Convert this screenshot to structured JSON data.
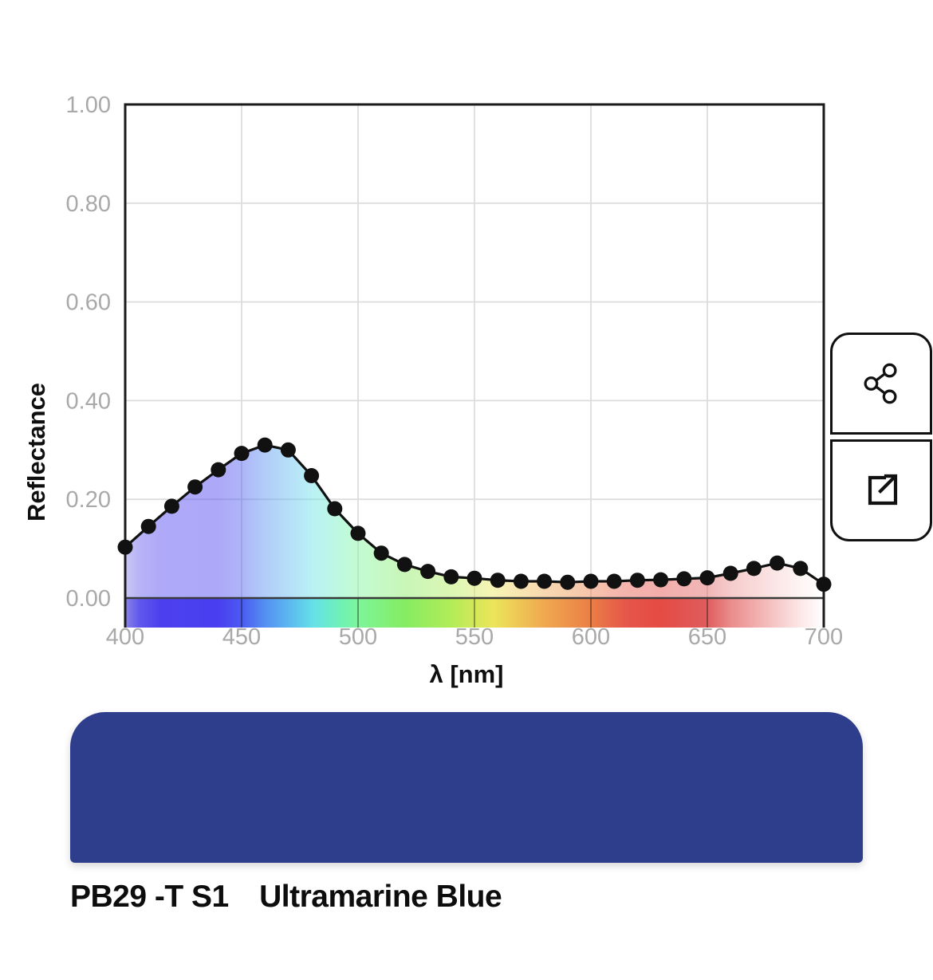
{
  "chart": {
    "y_axis_title": "Reflectance",
    "x_axis_title": "λ [nm]"
  },
  "chart_data": {
    "type": "line",
    "title": "",
    "xlabel": "λ [nm]",
    "ylabel": "Reflectance",
    "xlim": [
      400,
      700
    ],
    "ylim": [
      0,
      1
    ],
    "grid": true,
    "legend": "none",
    "line_color": "#111111",
    "marker": "filled-circle",
    "marker_radius": 9.5,
    "fill_opacity": 0.45,
    "x": [
      400,
      410,
      420,
      430,
      440,
      450,
      460,
      470,
      480,
      490,
      500,
      510,
      520,
      530,
      540,
      550,
      560,
      570,
      580,
      590,
      600,
      610,
      620,
      630,
      640,
      650,
      660,
      670,
      680,
      690,
      700
    ],
    "y": [
      0.103,
      0.145,
      0.186,
      0.225,
      0.26,
      0.293,
      0.31,
      0.3,
      0.248,
      0.181,
      0.131,
      0.091,
      0.068,
      0.054,
      0.043,
      0.04,
      0.036,
      0.034,
      0.034,
      0.032,
      0.034,
      0.034,
      0.036,
      0.037,
      0.039,
      0.041,
      0.05,
      0.06,
      0.071,
      0.06,
      0.028
    ],
    "x_ticks": [
      400,
      450,
      500,
      550,
      600,
      650,
      700
    ],
    "x_tick_labels": [
      "400",
      "450",
      "500",
      "550",
      "600",
      "650",
      "700"
    ],
    "y_ticks": [
      0,
      0.2,
      0.4,
      0.6,
      0.8,
      1
    ],
    "y_tick_labels": [
      "0.00",
      "0.20",
      "0.40",
      "0.60",
      "0.80",
      "1.00"
    ],
    "spectrum_gradient": [
      {
        "offset": 0,
        "color": "#8a84e8"
      },
      {
        "offset": 2,
        "color": "#6058ec"
      },
      {
        "offset": 5,
        "color": "#4c40ee"
      },
      {
        "offset": 13.3,
        "color": "#4a3ff0"
      },
      {
        "offset": 16.7,
        "color": "#4b5af0"
      },
      {
        "offset": 20,
        "color": "#5390f2"
      },
      {
        "offset": 23.3,
        "color": "#5cb6f0"
      },
      {
        "offset": 27,
        "color": "#65e2e6"
      },
      {
        "offset": 31,
        "color": "#6ff2b4"
      },
      {
        "offset": 33.3,
        "color": "#7df59b"
      },
      {
        "offset": 40,
        "color": "#85ec62"
      },
      {
        "offset": 46.7,
        "color": "#b2ec58"
      },
      {
        "offset": 52.7,
        "color": "#ece55a"
      },
      {
        "offset": 60,
        "color": "#f0a850"
      },
      {
        "offset": 66.7,
        "color": "#ea7e46"
      },
      {
        "offset": 71.7,
        "color": "#e6564a"
      },
      {
        "offset": 76.7,
        "color": "#e44b44"
      },
      {
        "offset": 83.3,
        "color": "#e05c5e"
      },
      {
        "offset": 86.7,
        "color": "#ea8c8c"
      },
      {
        "offset": 91.7,
        "color": "#f4baba"
      },
      {
        "offset": 96.7,
        "color": "#fce8e8"
      },
      {
        "offset": 100,
        "color": "#ffffff"
      }
    ]
  },
  "actions": {
    "share_icon": "share-nodes",
    "open_icon": "external-link"
  },
  "swatch": {
    "color": "#2e3e8c",
    "pigment_code": "PB29 -T S1",
    "pigment_name": "Ultramarine Blue"
  },
  "colors": {
    "tick_label": "#a9a9a9",
    "gridline": "#dddddd",
    "frame": "#1a1a1a",
    "zero_axis": "#3a3a3a"
  }
}
